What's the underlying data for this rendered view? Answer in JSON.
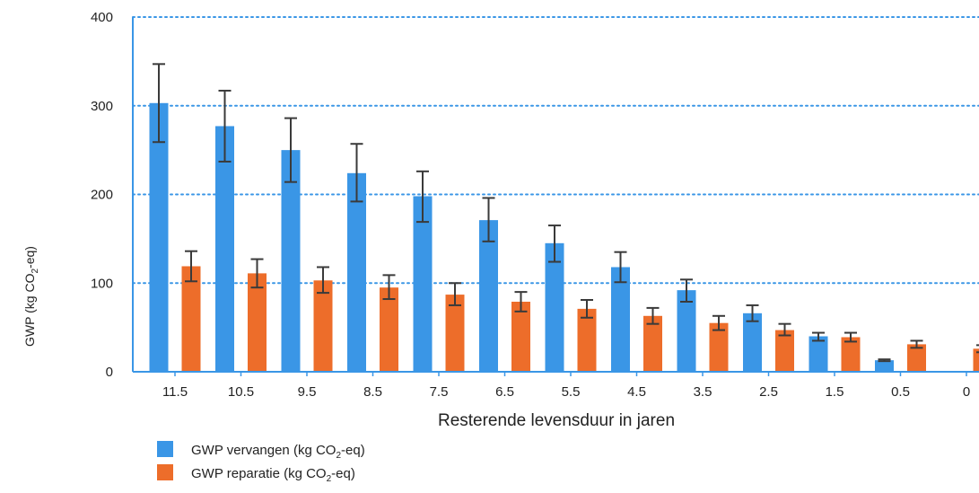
{
  "chart_data": {
    "type": "bar",
    "xlabel": "Resterende levensduur in jaren",
    "ylabel": {
      "pre": "GWP (kg CO",
      "sub": "2",
      "post": "-eq)"
    },
    "ylim": [
      0,
      400
    ],
    "yticks": [
      0,
      100,
      200,
      300,
      400
    ],
    "grid": "horizontal dotted",
    "legend_position": "bottom-left",
    "categories": [
      "11.5",
      "10.5",
      "9.5",
      "8.5",
      "7.5",
      "6.5",
      "5.5",
      "4.5",
      "3.5",
      "2.5",
      "1.5",
      "0.5",
      "0"
    ],
    "series": [
      {
        "name": "GWP vervangen (kg CO2-eq)",
        "label_pre": "GWP vervangen (kg CO",
        "label_sub": "2",
        "label_post": "-eq)",
        "color": "#3a96e6",
        "values": [
          303,
          277,
          250,
          224,
          198,
          171,
          145,
          118,
          92,
          66,
          40,
          13,
          0
        ],
        "error_low": [
          259,
          237,
          214,
          192,
          169,
          147,
          124,
          101,
          79,
          57,
          35,
          12,
          0
        ],
        "error_high": [
          347,
          317,
          286,
          257,
          226,
          196,
          165,
          135,
          104,
          75,
          44,
          14,
          0
        ]
      },
      {
        "name": "GWP reparatie (kg CO2-eq)",
        "label_pre": "GWP reparatie (kg CO",
        "label_sub": "2",
        "label_post": "-eq)",
        "color": "#ed6d2a",
        "values": [
          119,
          111,
          103,
          95,
          87,
          79,
          71,
          63,
          55,
          47,
          39,
          31,
          26
        ],
        "error_low": [
          102,
          95,
          89,
          82,
          75,
          68,
          61,
          54,
          47,
          41,
          34,
          27,
          22
        ],
        "error_high": [
          136,
          127,
          118,
          109,
          100,
          90,
          81,
          72,
          63,
          54,
          44,
          35,
          30
        ]
      }
    ]
  }
}
